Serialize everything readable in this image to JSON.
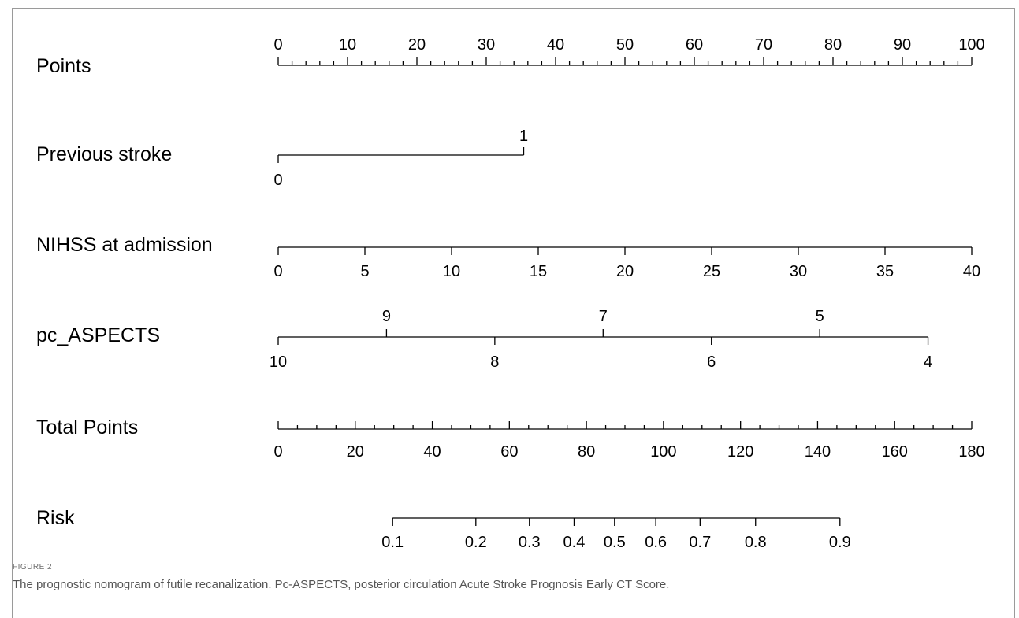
{
  "chart_data": {
    "type": "nomogram",
    "points_range": [
      0,
      100
    ],
    "rows": [
      {
        "label": "Points",
        "kind": "points",
        "labeled_ticks": [
          0,
          10,
          20,
          30,
          40,
          50,
          60,
          70,
          80,
          90,
          100
        ],
        "minor_step": 2,
        "label_side": "above"
      },
      {
        "label": "Previous stroke",
        "kind": "categorical",
        "values": [
          {
            "value": "0",
            "points": 0,
            "label_side": "below"
          },
          {
            "value": "1",
            "points": 35.4,
            "label_side": "above"
          }
        ]
      },
      {
        "label": "NIHSS at admission",
        "kind": "continuous",
        "domain": [
          0,
          40
        ],
        "points_at_domain": [
          0,
          100
        ],
        "labeled_ticks": [
          0,
          5,
          10,
          15,
          20,
          25,
          30,
          35,
          40
        ],
        "label_side": "below"
      },
      {
        "label": "pc_ASPECTS",
        "kind": "continuous",
        "domain": [
          10,
          4
        ],
        "points_at_domain": [
          0,
          93.7
        ],
        "ticks": [
          {
            "value": 10,
            "label_side": "below"
          },
          {
            "value": 9,
            "label_side": "above"
          },
          {
            "value": 8,
            "label_side": "below"
          },
          {
            "value": 7,
            "label_side": "above"
          },
          {
            "value": 6,
            "label_side": "below"
          },
          {
            "value": 5,
            "label_side": "above"
          },
          {
            "value": 4,
            "label_side": "below"
          }
        ]
      },
      {
        "label": "Total Points",
        "kind": "total",
        "domain": [
          0,
          180
        ],
        "labeled_ticks": [
          0,
          20,
          40,
          60,
          80,
          100,
          120,
          140,
          160,
          180
        ],
        "minor_step": 5,
        "label_side": "below"
      },
      {
        "label": "Risk",
        "kind": "risk",
        "ticks": [
          {
            "label": "0.1",
            "total_points": 29.7
          },
          {
            "label": "0.2",
            "total_points": 51.3
          },
          {
            "label": "0.3",
            "total_points": 65.2
          },
          {
            "label": "0.4",
            "total_points": 76.8
          },
          {
            "label": "0.5",
            "total_points": 87.3
          },
          {
            "label": "0.6",
            "total_points": 98.0
          },
          {
            "label": "0.7",
            "total_points": 109.5
          },
          {
            "label": "0.8",
            "total_points": 123.9
          },
          {
            "label": "0.9",
            "total_points": 145.8
          }
        ],
        "label_side": "below"
      }
    ]
  },
  "caption": {
    "label": "FIGURE 2",
    "text": "The prognostic nomogram of futile recanalization. Pc-ASPECTS, posterior circulation Acute Stroke Prognosis Early CT Score."
  }
}
